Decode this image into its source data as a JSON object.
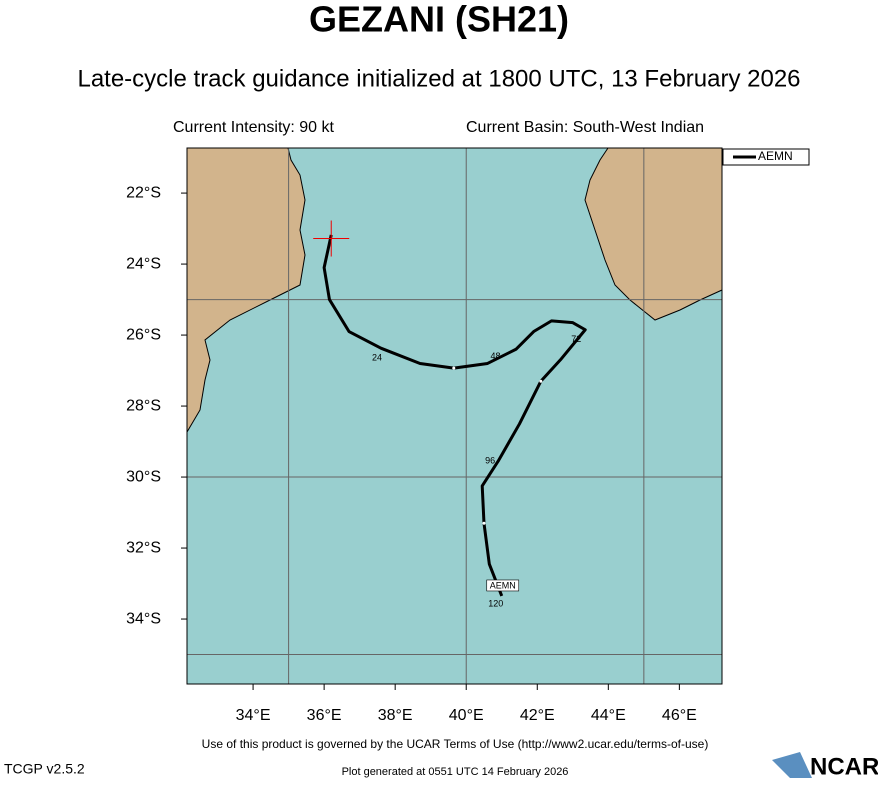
{
  "chart_data": {
    "type": "track",
    "title": "GEZANI (SH21)",
    "subtitle": "Late-cycle track guidance initialized at 1800 UTC, 13 February 2026",
    "intensity": "Current Intensity: 90 kt",
    "basin": "Current Basin: South-West Indian",
    "xlim": [
      32.14,
      47.2
    ],
    "ylim": [
      -35.83,
      -20.73
    ],
    "xticks": [
      {
        "value": 34,
        "label": "34°E"
      },
      {
        "value": 36,
        "label": "36°E"
      },
      {
        "value": 38,
        "label": "38°E"
      },
      {
        "value": 40,
        "label": "40°E"
      },
      {
        "value": 42,
        "label": "42°E"
      },
      {
        "value": 44,
        "label": "44°E"
      },
      {
        "value": 46,
        "label": "46°E"
      }
    ],
    "yticks": [
      {
        "value": -22,
        "label": "22°S"
      },
      {
        "value": -24,
        "label": "24°S"
      },
      {
        "value": -26,
        "label": "26°S"
      },
      {
        "value": -28,
        "label": "28°S"
      },
      {
        "value": -30,
        "label": "30°S"
      },
      {
        "value": -32,
        "label": "32°S"
      },
      {
        "value": -34,
        "label": "34°S"
      }
    ],
    "grid_x": [
      35,
      40,
      45
    ],
    "grid_y": [
      -25,
      -30,
      -35
    ],
    "current_position": {
      "lon": 36.2,
      "lat": -23.28
    },
    "series": [
      {
        "name": "AEMN",
        "color": "#000000",
        "x": [
          36.2,
          36.0,
          36.15,
          36.7,
          37.6,
          38.7,
          39.65,
          40.6,
          41.4,
          41.9,
          42.4,
          43.0,
          43.35,
          42.65,
          42.1,
          41.5,
          40.9,
          40.45,
          40.5,
          40.65,
          41.0
        ],
        "values": [
          -23.18,
          -24.1,
          -25.0,
          -25.9,
          -26.37,
          -26.8,
          -26.93,
          -26.8,
          -26.4,
          -25.9,
          -25.6,
          -25.65,
          -25.85,
          -26.7,
          -27.3,
          -28.5,
          -29.55,
          -30.25,
          -31.3,
          -32.45,
          -33.35
        ]
      }
    ],
    "hour_labels": [
      24,
      48,
      72,
      96,
      120
    ]
  },
  "footer": {
    "terms": "Use of this product is governed by the UCAR Terms of Use (http://www2.ucar.edu/terms-of-use)",
    "version": "TCGP v2.5.2",
    "generated": "Plot generated at 0551 UTC  14 February 2026",
    "logo": "NCAR"
  }
}
